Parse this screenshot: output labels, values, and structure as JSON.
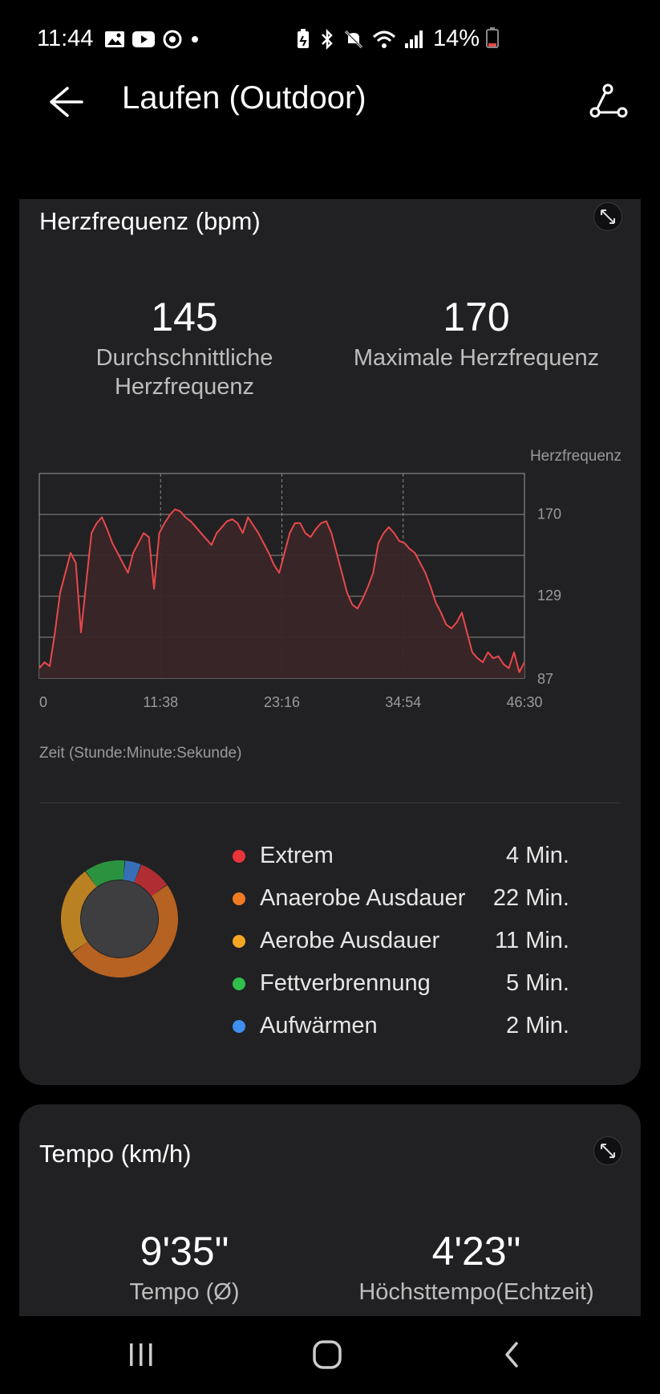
{
  "status": {
    "time": "11:44",
    "battery": "14%"
  },
  "app": {
    "title": "Laufen (Outdoor)"
  },
  "heart": {
    "title": "Herzfrequenz (bpm)",
    "avg_value": "145",
    "avg_label_1": "Durchschnittliche",
    "avg_label_2": "Herzfrequenz",
    "max_value": "170",
    "max_label": "Maximale Herzfrequenz",
    "chart_legend": "Herzfrequenz",
    "time_axis_label": "Zeit (Stunde:Minute:Sekunde)",
    "colors": {
      "line": "#e8484b",
      "fill": "#3a2628"
    }
  },
  "chart_data": {
    "type": "area",
    "title": "Herzfrequenz (bpm)",
    "xlabel": "Zeit (Stunde:Minute:Sekunde)",
    "ylabel": "Herzfrequenz",
    "x_ticks": [
      "0",
      "11:38",
      "23:16",
      "34:54",
      "46:30"
    ],
    "y_ticks": [
      87,
      129,
      170
    ],
    "x_range_min": [
      0,
      46.5
    ],
    "y_range": [
      87,
      190
    ],
    "grid": true,
    "series": [
      {
        "name": "Herzfrequenz",
        "x": [
          0,
          0.5,
          1,
          1.5,
          2,
          2.5,
          3,
          3.5,
          4,
          4.5,
          5,
          5.5,
          6,
          6.5,
          7,
          7.5,
          8,
          8.5,
          9,
          9.5,
          10,
          10.5,
          11,
          11.5,
          12,
          12.5,
          13,
          13.5,
          14,
          14.5,
          15,
          15.5,
          16,
          16.5,
          17,
          17.5,
          18,
          18.5,
          19,
          19.5,
          20,
          20.5,
          21,
          21.5,
          22,
          22.5,
          23,
          23.5,
          24,
          24.5,
          25,
          25.5,
          26,
          26.5,
          27,
          27.5,
          28,
          28.5,
          29,
          29.5,
          30,
          30.5,
          31,
          31.5,
          32,
          32.5,
          33,
          33.5,
          34,
          34.5,
          35,
          35.5,
          36,
          36.5,
          37,
          37.5,
          38,
          38.5,
          39,
          39.5,
          40,
          40.5,
          41,
          41.5,
          42,
          42.5,
          43,
          43.5,
          44,
          44.5,
          45,
          45.5,
          46,
          46.5
        ],
        "values": [
          92,
          95,
          93,
          110,
          130,
          140,
          150,
          145,
          110,
          135,
          160,
          165,
          168,
          162,
          155,
          150,
          145,
          140,
          150,
          155,
          160,
          158,
          132,
          160,
          165,
          169,
          172,
          171,
          168,
          166,
          163,
          160,
          157,
          154,
          160,
          163,
          166,
          167,
          165,
          160,
          168,
          164,
          160,
          155,
          150,
          144,
          140,
          150,
          160,
          165,
          165,
          160,
          158,
          162,
          165,
          166,
          160,
          150,
          140,
          130,
          124,
          122,
          127,
          133,
          140,
          155,
          160,
          163,
          160,
          156,
          155,
          152,
          150,
          145,
          140,
          133,
          125,
          120,
          114,
          112,
          115,
          120,
          110,
          100,
          97,
          95,
          100,
          97,
          98,
          94,
          92,
          100,
          90,
          95
        ]
      }
    ]
  },
  "zones": {
    "items": [
      {
        "label": "Extrem",
        "duration": "4 Min.",
        "color": "#e8343a",
        "minutes": 4
      },
      {
        "label": "Anaerobe Ausdauer",
        "duration": "22 Min.",
        "color": "#f07b22",
        "minutes": 22
      },
      {
        "label": "Aerobe Ausdauer",
        "duration": "11 Min.",
        "color": "#f5a623",
        "minutes": 11
      },
      {
        "label": "Fettverbrennung",
        "duration": "5 Min.",
        "color": "#2fbf4a",
        "minutes": 5
      },
      {
        "label": "Aufwärmen",
        "duration": "2 Min.",
        "color": "#3f8ef0",
        "minutes": 2
      }
    ]
  },
  "tempo": {
    "title": "Tempo (km/h)",
    "avg_value": "9'35\"",
    "avg_label": "Tempo (Ø)",
    "max_value": "4'23\"",
    "max_label": "Höchsttempo(Echtzeit)"
  }
}
